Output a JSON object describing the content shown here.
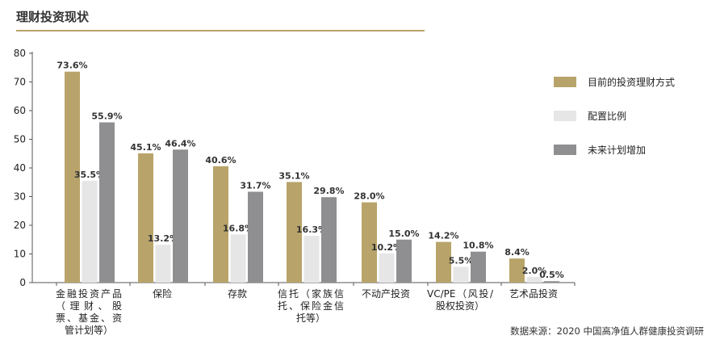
{
  "title": "理财投资现状",
  "source": "数据来源：2020 中国高净值人群健康投资调研",
  "colors": {
    "series_1": "#b8a46a",
    "series_2": "#e6e6e6",
    "series_3": "#8f8f91",
    "axis": "#555555",
    "text": "#222222"
  },
  "chart_data": {
    "type": "bar",
    "title": "理财投资现状",
    "xlabel": "",
    "ylabel": "",
    "ylim": [
      0,
      80
    ],
    "yticks": [
      0,
      10,
      20,
      30,
      40,
      50,
      60,
      70,
      80
    ],
    "grid": false,
    "legend_position": "right",
    "categories": [
      "金融投资产品（理财、股票、基金、资管计划等）",
      "保险",
      "存款",
      "信托（家族信托、保险金信托等）",
      "不动产投资",
      "VC/PE（风投/股权投资）",
      "艺术品投资"
    ],
    "series": [
      {
        "name": "目前的投资理财方式",
        "values": [
          73.6,
          45.1,
          40.6,
          35.1,
          28.0,
          14.2,
          8.4
        ],
        "labels": [
          "73.6%",
          "45.1%",
          "40.6%",
          "35.1%",
          "28.0%",
          "14.2%",
          "8.4%"
        ]
      },
      {
        "name": "配置比例",
        "values": [
          35.5,
          13.2,
          16.8,
          16.3,
          10.2,
          5.5,
          2.0
        ],
        "labels": [
          "35.5%",
          "13.2%",
          "16.8%",
          "16.3%",
          "10.2%",
          "5.5%",
          "2.0%"
        ]
      },
      {
        "name": "未来计划增加",
        "values": [
          55.9,
          46.4,
          31.7,
          29.8,
          15.0,
          10.8,
          0.5
        ],
        "labels": [
          "55.9%",
          "46.4%",
          "31.7%",
          "29.8%",
          "15.0%",
          "10.8%",
          "0.5%"
        ]
      }
    ]
  }
}
